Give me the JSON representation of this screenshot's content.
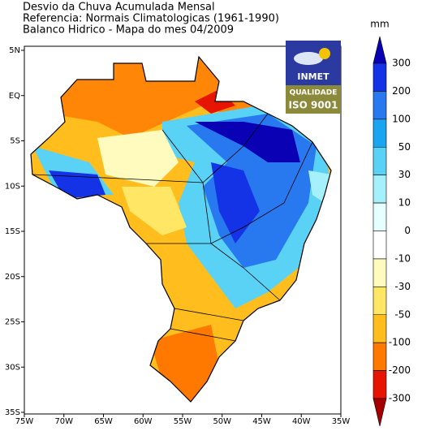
{
  "header": {
    "lines": [
      "Desvio da Chuva Acumulada Mensal",
      "Referencia: Normais Climatologicas (1961-1990)",
      "Balanco Hidrico - Mapa do mes 04/2009"
    ]
  },
  "logo": {
    "name": "INMET",
    "badge_top": "QUALIDADE",
    "badge_bottom": "ISO 9001"
  },
  "axes": {
    "lon_lim": [
      -75,
      -35
    ],
    "lat_lim": [
      5,
      -35
    ],
    "lon_ticks": [
      {
        "value": -75,
        "label": "75W"
      },
      {
        "value": -70,
        "label": "70W"
      },
      {
        "value": -65,
        "label": "65W"
      },
      {
        "value": -60,
        "label": "60W"
      },
      {
        "value": -55,
        "label": "55W"
      },
      {
        "value": -50,
        "label": "50W"
      },
      {
        "value": -45,
        "label": "45W"
      },
      {
        "value": -40,
        "label": "40W"
      },
      {
        "value": -35,
        "label": "35W"
      }
    ],
    "lat_ticks": [
      {
        "value": 5,
        "label": "5N"
      },
      {
        "value": 0,
        "label": "EQ"
      },
      {
        "value": -5,
        "label": "5S"
      },
      {
        "value": -10,
        "label": "10S"
      },
      {
        "value": -15,
        "label": "15S"
      },
      {
        "value": -20,
        "label": "20S"
      },
      {
        "value": -25,
        "label": "25S"
      },
      {
        "value": -30,
        "label": "30S"
      },
      {
        "value": -35,
        "label": "35S"
      }
    ]
  },
  "colorbar": {
    "unit": "mm",
    "levels": [
      300,
      200,
      100,
      50,
      30,
      10,
      0,
      -10,
      -30,
      -50,
      -100,
      -200,
      -300
    ],
    "colors": [
      "#0a00b4",
      "#1432e6",
      "#2878f0",
      "#19a5f0",
      "#5ad2f5",
      "#a5f0fa",
      "#e6ffff",
      "#ffffff",
      "#fffabe",
      "#ffe664",
      "#ffbe1e",
      "#ff7800",
      "#e61400",
      "#a50000"
    ]
  }
}
